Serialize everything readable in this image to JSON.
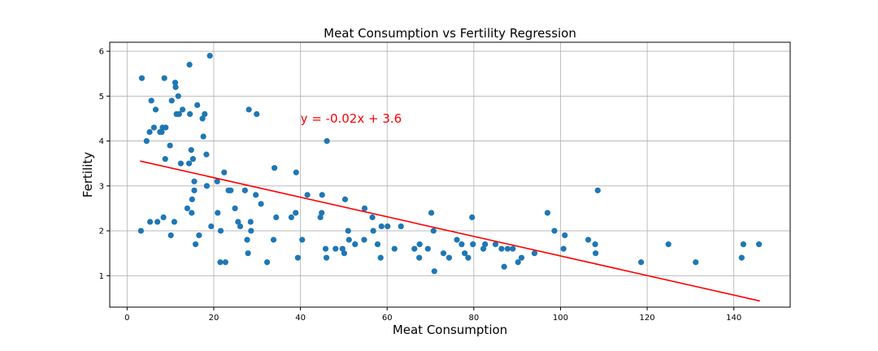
{
  "chart_data": {
    "type": "scatter",
    "title": "Meat Consumption vs Fertility Regression",
    "xlabel": "Meat Consumption",
    "ylabel": "Fertility",
    "xlim": [
      -4,
      153
    ],
    "ylim": [
      0.3,
      6.2
    ],
    "xticks": [
      0,
      20,
      40,
      60,
      80,
      100,
      120,
      140
    ],
    "yticks": [
      1,
      2,
      3,
      4,
      5,
      6
    ],
    "grid": true,
    "colors": {
      "points": "#1f77b4",
      "regression_line": "#ff0000",
      "annotation": "#ff0000",
      "grid": "#b0b0b0"
    },
    "annotation": {
      "text": "y = -0.02x + 3.6",
      "x": 40,
      "y": 4.5
    },
    "regression": {
      "slope": -0.0218,
      "intercept": 3.62,
      "x_start": 3,
      "x_end": 146
    },
    "points": [
      {
        "x": 3.4,
        "y": 5.4
      },
      {
        "x": 3.2,
        "y": 2.0
      },
      {
        "x": 4.5,
        "y": 4.0
      },
      {
        "x": 5.2,
        "y": 4.2
      },
      {
        "x": 5.3,
        "y": 2.2
      },
      {
        "x": 5.6,
        "y": 4.9
      },
      {
        "x": 6.2,
        "y": 4.3
      },
      {
        "x": 6.6,
        "y": 4.7
      },
      {
        "x": 7.0,
        "y": 2.2
      },
      {
        "x": 7.6,
        "y": 4.2
      },
      {
        "x": 8.0,
        "y": 4.2
      },
      {
        "x": 8.2,
        "y": 4.3
      },
      {
        "x": 8.4,
        "y": 2.3
      },
      {
        "x": 8.6,
        "y": 5.4
      },
      {
        "x": 8.8,
        "y": 3.6
      },
      {
        "x": 8.9,
        "y": 4.3
      },
      {
        "x": 9.9,
        "y": 3.9
      },
      {
        "x": 10.1,
        "y": 1.9
      },
      {
        "x": 10.3,
        "y": 4.9
      },
      {
        "x": 10.9,
        "y": 2.2
      },
      {
        "x": 11.1,
        "y": 5.3
      },
      {
        "x": 11.2,
        "y": 5.2
      },
      {
        "x": 11.4,
        "y": 4.6
      },
      {
        "x": 11.8,
        "y": 5.0
      },
      {
        "x": 12.0,
        "y": 4.6
      },
      {
        "x": 12.4,
        "y": 3.5
      },
      {
        "x": 12.8,
        "y": 4.7
      },
      {
        "x": 13.9,
        "y": 2.5
      },
      {
        "x": 14.3,
        "y": 3.5
      },
      {
        "x": 14.4,
        "y": 5.7
      },
      {
        "x": 14.5,
        "y": 4.6
      },
      {
        "x": 14.8,
        "y": 3.8
      },
      {
        "x": 14.9,
        "y": 2.4
      },
      {
        "x": 15.0,
        "y": 2.7
      },
      {
        "x": 15.2,
        "y": 3.6
      },
      {
        "x": 15.5,
        "y": 3.1
      },
      {
        "x": 15.5,
        "y": 2.9
      },
      {
        "x": 15.8,
        "y": 1.7
      },
      {
        "x": 16.2,
        "y": 4.8
      },
      {
        "x": 16.6,
        "y": 1.9
      },
      {
        "x": 17.4,
        "y": 4.5
      },
      {
        "x": 17.6,
        "y": 4.1
      },
      {
        "x": 17.9,
        "y": 4.6
      },
      {
        "x": 18.3,
        "y": 3.7
      },
      {
        "x": 18.4,
        "y": 3.0
      },
      {
        "x": 19.1,
        "y": 5.9
      },
      {
        "x": 19.4,
        "y": 2.1
      },
      {
        "x": 20.8,
        "y": 3.1
      },
      {
        "x": 20.9,
        "y": 2.4
      },
      {
        "x": 21.5,
        "y": 1.3
      },
      {
        "x": 21.6,
        "y": 2.0
      },
      {
        "x": 22.4,
        "y": 3.3
      },
      {
        "x": 22.7,
        "y": 1.3
      },
      {
        "x": 23.4,
        "y": 2.9
      },
      {
        "x": 23.9,
        "y": 2.9
      },
      {
        "x": 24.9,
        "y": 2.5
      },
      {
        "x": 25.6,
        "y": 2.2
      },
      {
        "x": 26.1,
        "y": 2.1
      },
      {
        "x": 27.2,
        "y": 2.9
      },
      {
        "x": 27.7,
        "y": 1.8
      },
      {
        "x": 27.9,
        "y": 1.5
      },
      {
        "x": 28.1,
        "y": 4.7
      },
      {
        "x": 28.5,
        "y": 2.2
      },
      {
        "x": 28.6,
        "y": 2.0
      },
      {
        "x": 29.7,
        "y": 2.8
      },
      {
        "x": 29.9,
        "y": 4.6
      },
      {
        "x": 30.9,
        "y": 2.6
      },
      {
        "x": 32.3,
        "y": 1.3
      },
      {
        "x": 33.8,
        "y": 1.8
      },
      {
        "x": 34.0,
        "y": 3.4
      },
      {
        "x": 34.4,
        "y": 2.3
      },
      {
        "x": 37.9,
        "y": 2.3
      },
      {
        "x": 38.9,
        "y": 2.4
      },
      {
        "x": 39.0,
        "y": 3.3
      },
      {
        "x": 39.4,
        "y": 1.4
      },
      {
        "x": 40.4,
        "y": 1.8
      },
      {
        "x": 41.6,
        "y": 2.8
      },
      {
        "x": 44.6,
        "y": 2.3
      },
      {
        "x": 44.9,
        "y": 2.4
      },
      {
        "x": 45.0,
        "y": 2.8
      },
      {
        "x": 45.8,
        "y": 1.6
      },
      {
        "x": 46.0,
        "y": 1.4
      },
      {
        "x": 46.1,
        "y": 4.0
      },
      {
        "x": 48.1,
        "y": 1.6
      },
      {
        "x": 49.7,
        "y": 1.6
      },
      {
        "x": 50.1,
        "y": 1.5
      },
      {
        "x": 50.3,
        "y": 2.7
      },
      {
        "x": 51.0,
        "y": 2.0
      },
      {
        "x": 51.2,
        "y": 1.8
      },
      {
        "x": 52.6,
        "y": 1.7
      },
      {
        "x": 54.7,
        "y": 1.8
      },
      {
        "x": 54.8,
        "y": 2.5
      },
      {
        "x": 56.6,
        "y": 2.3
      },
      {
        "x": 56.8,
        "y": 2.0
      },
      {
        "x": 57.8,
        "y": 1.7
      },
      {
        "x": 58.5,
        "y": 1.4
      },
      {
        "x": 58.7,
        "y": 2.1
      },
      {
        "x": 60.1,
        "y": 2.1
      },
      {
        "x": 61.7,
        "y": 1.6
      },
      {
        "x": 63.2,
        "y": 2.1
      },
      {
        "x": 66.3,
        "y": 1.6
      },
      {
        "x": 67.4,
        "y": 1.4
      },
      {
        "x": 67.5,
        "y": 1.7
      },
      {
        "x": 69.4,
        "y": 1.6
      },
      {
        "x": 70.2,
        "y": 2.4
      },
      {
        "x": 70.7,
        "y": 2.0
      },
      {
        "x": 70.9,
        "y": 1.1
      },
      {
        "x": 73.0,
        "y": 1.5
      },
      {
        "x": 74.3,
        "y": 1.4
      },
      {
        "x": 76.1,
        "y": 1.8
      },
      {
        "x": 77.2,
        "y": 1.7
      },
      {
        "x": 77.9,
        "y": 1.5
      },
      {
        "x": 78.7,
        "y": 1.4
      },
      {
        "x": 79.6,
        "y": 2.3
      },
      {
        "x": 79.8,
        "y": 1.7
      },
      {
        "x": 82.2,
        "y": 1.6
      },
      {
        "x": 82.6,
        "y": 1.7
      },
      {
        "x": 85.0,
        "y": 1.7
      },
      {
        "x": 86.4,
        "y": 1.6
      },
      {
        "x": 87.0,
        "y": 1.2
      },
      {
        "x": 87.8,
        "y": 1.6
      },
      {
        "x": 89.0,
        "y": 1.6
      },
      {
        "x": 90.2,
        "y": 1.3
      },
      {
        "x": 91.0,
        "y": 1.4
      },
      {
        "x": 94.0,
        "y": 1.5
      },
      {
        "x": 97.0,
        "y": 2.4
      },
      {
        "x": 98.6,
        "y": 2.0
      },
      {
        "x": 100.7,
        "y": 1.6
      },
      {
        "x": 101.0,
        "y": 1.9
      },
      {
        "x": 106.4,
        "y": 1.8
      },
      {
        "x": 108.0,
        "y": 1.7
      },
      {
        "x": 108.1,
        "y": 1.5
      },
      {
        "x": 108.6,
        "y": 2.9
      },
      {
        "x": 118.6,
        "y": 1.3
      },
      {
        "x": 124.9,
        "y": 1.7
      },
      {
        "x": 131.2,
        "y": 1.3
      },
      {
        "x": 141.8,
        "y": 1.4
      },
      {
        "x": 142.2,
        "y": 1.7
      },
      {
        "x": 145.8,
        "y": 1.7
      }
    ]
  }
}
